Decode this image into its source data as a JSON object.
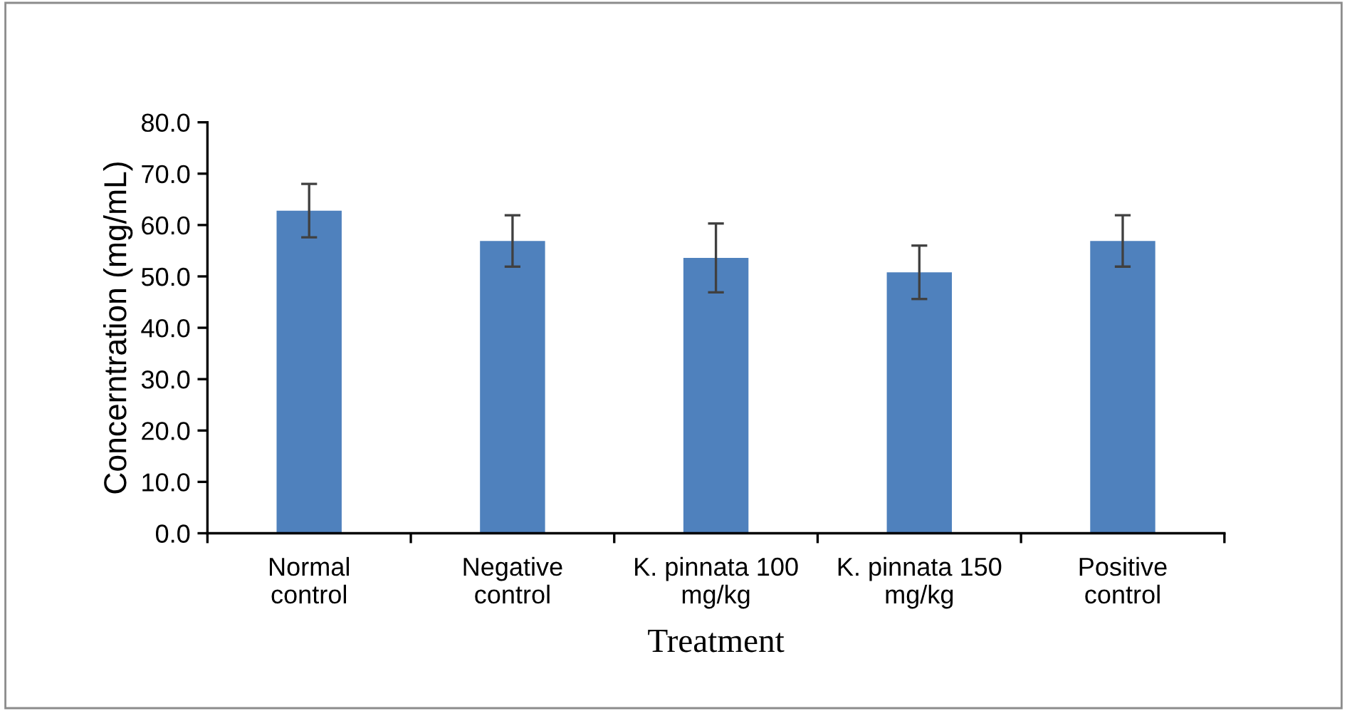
{
  "chart_data": {
    "type": "bar",
    "xlabel": "Treatment",
    "ylabel": "Concerntration (mg/mL)",
    "categories": [
      "Normal control",
      "Negative control",
      "K. pinnata 100 mg/kg",
      "K. pinnata 150 mg/kg",
      "Positive control"
    ],
    "values": [
      62.8,
      56.9,
      53.6,
      50.8,
      56.9
    ],
    "errors": [
      5.2,
      5.0,
      6.7,
      5.2,
      5.0
    ],
    "color": "#4f81bd",
    "ylim": [
      0,
      80
    ],
    "yticks": [
      {
        "value": 0,
        "label": "0.0"
      },
      {
        "value": 10,
        "label": "10.0"
      },
      {
        "value": 20,
        "label": "20.0"
      },
      {
        "value": 30,
        "label": "30.0"
      },
      {
        "value": 40,
        "label": "40.0"
      },
      {
        "value": 50,
        "label": "50.0"
      },
      {
        "value": 60,
        "label": "60.0"
      },
      {
        "value": 70,
        "label": "70.0"
      },
      {
        "value": 80,
        "label": "80.0"
      }
    ],
    "grid": false,
    "legend": false
  }
}
